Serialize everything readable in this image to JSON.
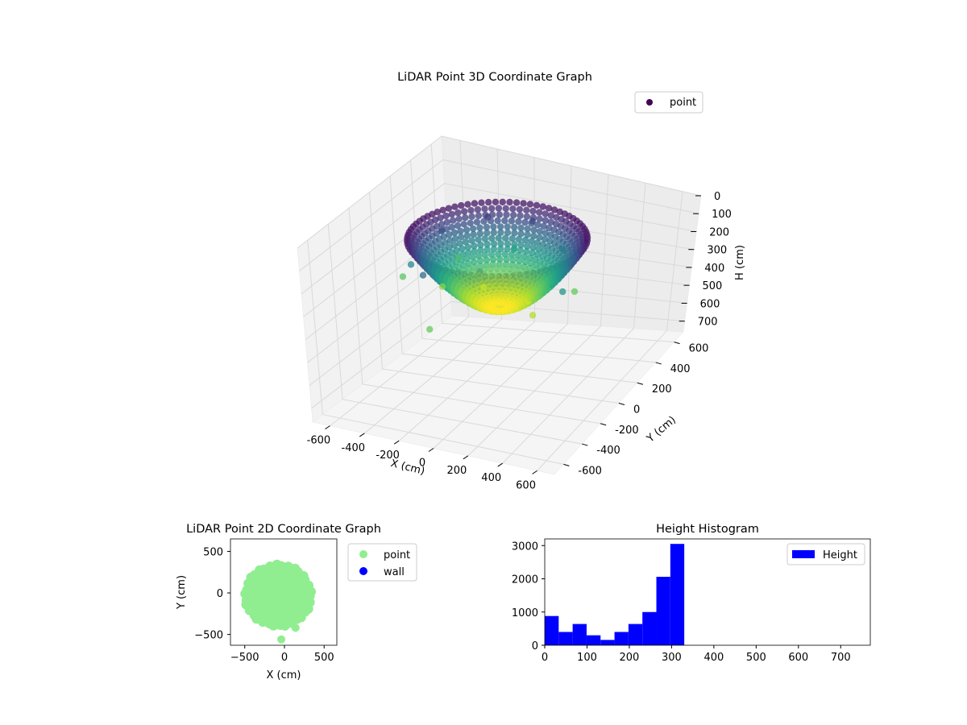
{
  "chart_data": [
    {
      "type": "scatter",
      "projection": "3d",
      "title": "LiDAR Point 3D Coordinate Graph",
      "xlabel": "X (cm)",
      "ylabel": "Y (cm)",
      "zlabel": "H (cm)",
      "xticks": [
        -600,
        -400,
        -200,
        0,
        200,
        400,
        600
      ],
      "yticks": [
        -600,
        -400,
        -200,
        0,
        200,
        400,
        600
      ],
      "zticks": [
        0,
        100,
        200,
        300,
        400,
        500,
        600,
        700
      ],
      "xlim": [
        -700,
        700
      ],
      "ylim": [
        -700,
        700
      ],
      "zlim": [
        760,
        0
      ],
      "z_axis_inverted": true,
      "colormap": "viridis",
      "grid": true,
      "legend": {
        "position": "upper right",
        "entries": [
          {
            "name": "point",
            "color": "#440154"
          }
        ]
      },
      "series": [
        {
          "name": "point",
          "description": "dome-shaped LiDAR point cloud, colored by height",
          "points": [
            {
              "x": 0,
              "y": 0,
              "z": 330
            },
            {
              "x": 120,
              "y": 80,
              "z": 320
            },
            {
              "x": -150,
              "y": 100,
              "z": 310
            },
            {
              "x": 250,
              "y": -100,
              "z": 300
            },
            {
              "x": -300,
              "y": -50,
              "z": 280
            },
            {
              "x": 350,
              "y": 150,
              "z": 260
            },
            {
              "x": -350,
              "y": 200,
              "z": 240
            },
            {
              "x": 150,
              "y": -300,
              "z": 220
            },
            {
              "x": -100,
              "y": 330,
              "z": 200
            },
            {
              "x": 400,
              "y": -50,
              "z": 180
            },
            {
              "x": -420,
              "y": -150,
              "z": 160
            },
            {
              "x": 200,
              "y": 300,
              "z": 140
            },
            {
              "x": -250,
              "y": -320,
              "z": 120
            },
            {
              "x": 300,
              "y": -280,
              "z": 100
            },
            {
              "x": -380,
              "y": 100,
              "z": 80
            },
            {
              "x": 0,
              "y": 350,
              "z": 60
            },
            {
              "x": -200,
              "y": 250,
              "z": 40
            },
            {
              "x": 100,
              "y": -350,
              "z": 30
            },
            {
              "x": -500,
              "y": -100,
              "z": 250
            },
            {
              "x": -80,
              "y": -560,
              "z": 260
            }
          ]
        }
      ]
    },
    {
      "type": "scatter",
      "title": "LiDAR Point 2D Coordinate Graph",
      "xlabel": "X (cm)",
      "ylabel": "Y (cm)",
      "xticks": [
        -500,
        0,
        500
      ],
      "yticks": [
        500,
        0,
        -500
      ],
      "xlim": [
        -680,
        660
      ],
      "ylim": [
        -630,
        650
      ],
      "legend": {
        "position": "outside right",
        "entries": [
          {
            "name": "point",
            "color": "#90ee90"
          },
          {
            "name": "wall",
            "color": "#0000ff"
          }
        ]
      },
      "series": [
        {
          "name": "point",
          "color": "#90ee90",
          "cloud": {
            "x_range": [
              -540,
              380
            ],
            "y_range": [
              -440,
              380
            ]
          },
          "outliers": [
            {
              "x": -40,
              "y": -560
            },
            {
              "x": 140,
              "y": -420
            }
          ]
        },
        {
          "name": "wall",
          "color": "#0000ff",
          "points": []
        }
      ]
    },
    {
      "type": "bar",
      "subtype": "histogram",
      "title": "Height Histogram",
      "xlabel": "",
      "ylabel": "",
      "xticks": [
        0,
        100,
        200,
        300,
        400,
        500,
        600,
        700
      ],
      "yticks": [
        0,
        1000,
        2000,
        3000
      ],
      "xlim": [
        0,
        770
      ],
      "ylim": [
        0,
        3200
      ],
      "legend": {
        "position": "upper right",
        "entries": [
          {
            "name": "Height",
            "color": "#0000ff"
          }
        ]
      },
      "series": [
        {
          "name": "Height",
          "color": "#0000ff",
          "bin_edges": [
            0,
            33,
            66,
            99,
            132,
            165,
            198,
            231,
            264,
            297,
            330
          ],
          "counts": [
            880,
            400,
            640,
            300,
            160,
            400,
            640,
            1000,
            2060,
            3050
          ]
        }
      ]
    }
  ]
}
